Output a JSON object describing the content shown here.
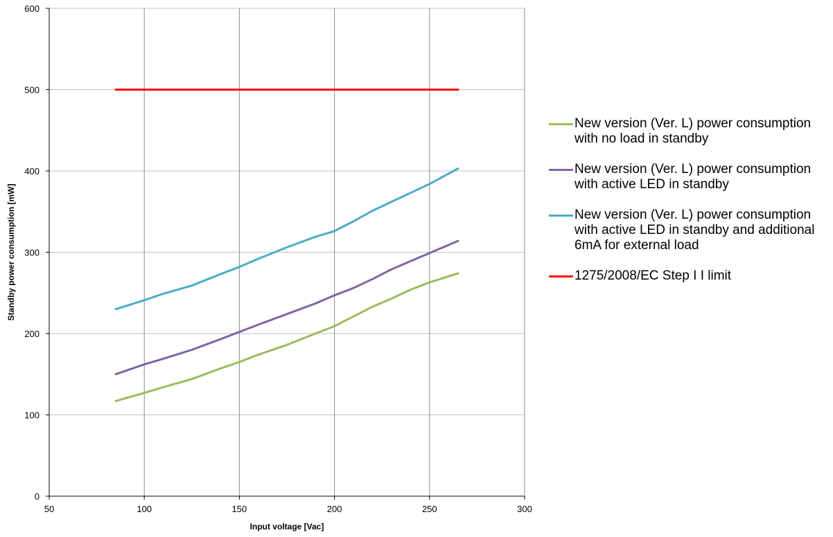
{
  "chart_data": {
    "type": "line",
    "title": "",
    "xlabel": "Input voltage  [Vac]",
    "ylabel": "Standby power consumption [mW]",
    "xlim": [
      50,
      300
    ],
    "ylim": [
      0,
      600
    ],
    "xticks": [
      50,
      100,
      150,
      200,
      250,
      300
    ],
    "yticks": [
      0,
      100,
      200,
      300,
      400,
      500,
      600
    ],
    "grid": "major gridlines on both axes",
    "legend_position": "right",
    "series": [
      {
        "name": "New version (Ver. L) power consumption with no load in standby",
        "color": "#9BBB59",
        "x": [
          85,
          100,
          110,
          125,
          140,
          150,
          160,
          175,
          190,
          200,
          210,
          220,
          230,
          240,
          250,
          265
        ],
        "y": [
          117,
          127,
          134,
          144,
          157,
          165,
          174,
          186,
          200,
          209,
          221,
          233,
          243,
          254,
          263,
          274
        ]
      },
      {
        "name": "New version (Ver. L) power consumption with active LED in standby",
        "color": "#8064A2",
        "x": [
          85,
          100,
          110,
          125,
          140,
          150,
          160,
          175,
          190,
          200,
          210,
          220,
          230,
          240,
          250,
          265
        ],
        "y": [
          150,
          162,
          169,
          180,
          193,
          202,
          211,
          224,
          237,
          247,
          256,
          267,
          279,
          289,
          299,
          314
        ]
      },
      {
        "name": "New version (Ver. L) power consumption with active LED in standby and additional 6mA for external load",
        "color": "#4BACC6",
        "x": [
          85,
          100,
          110,
          125,
          140,
          150,
          160,
          175,
          190,
          200,
          210,
          220,
          230,
          240,
          250,
          265
        ],
        "y": [
          230,
          241,
          249,
          259,
          273,
          282,
          292,
          306,
          319,
          326,
          338,
          351,
          362,
          373,
          384,
          403
        ]
      },
      {
        "name": "1275/2008/EC Step I I  limit",
        "color": "#FF0000",
        "x": [
          85,
          265
        ],
        "y": [
          500,
          500
        ]
      }
    ]
  }
}
